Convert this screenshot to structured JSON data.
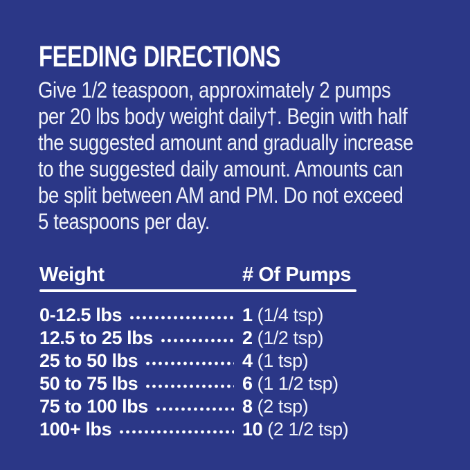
{
  "colors": {
    "background": "#2B3787",
    "text": "#FFFFFF"
  },
  "title": "FEEDING DIRECTIONS",
  "paragraph": {
    "lines": [
      "Give 1/2 teaspoon, approximately 2 pumps",
      "per 20 lbs body weight daily†. Begin with half",
      "the suggested amount and gradually increase",
      "to the suggested daily amount. Amounts can",
      "be split between AM and PM. Do not exceed",
      "5 teaspoons per day."
    ]
  },
  "table": {
    "headers": {
      "weight": "Weight",
      "pumps": "# Of Pumps"
    },
    "rows": [
      {
        "weight": "0-12.5 lbs",
        "pumps": "1",
        "tsp": "(1/4 tsp)"
      },
      {
        "weight": "12.5 to 25 lbs",
        "pumps": "2",
        "tsp": "(1/2 tsp)"
      },
      {
        "weight": "25 to 50 lbs",
        "pumps": "4",
        "tsp": "(1 tsp)"
      },
      {
        "weight": "50 to 75 lbs",
        "pumps": "6",
        "tsp": "(1 1/2 tsp)"
      },
      {
        "weight": "75 to 100 lbs",
        "pumps": "8",
        "tsp": "(2 tsp)"
      },
      {
        "weight": "100+ lbs",
        "pumps": "10",
        "tsp": "(2 1/2 tsp)"
      }
    ]
  }
}
